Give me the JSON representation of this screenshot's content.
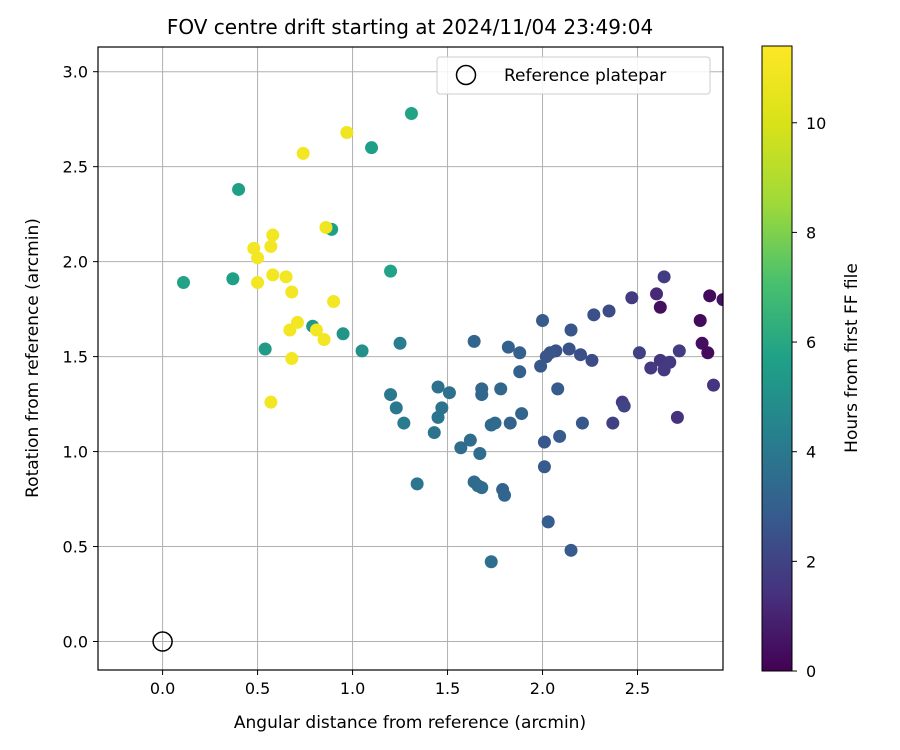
{
  "chart_data": {
    "type": "scatter",
    "title": "FOV centre drift starting at 2024/11/04 23:49:04",
    "xlabel": "Angular distance from reference (arcmin)",
    "ylabel": "Rotation from reference (arcmin)",
    "xlim": [
      -0.34,
      2.95
    ],
    "ylim": [
      -0.15,
      3.13
    ],
    "xticks": [
      "0.0",
      "0.5",
      "1.0",
      "1.5",
      "2.0",
      "2.5"
    ],
    "xtick_values": [
      0.0,
      0.5,
      1.0,
      1.5,
      2.0,
      2.5
    ],
    "yticks": [
      "0.0",
      "0.5",
      "1.0",
      "1.5",
      "2.0",
      "2.5",
      "3.0"
    ],
    "ytick_values": [
      0.0,
      0.5,
      1.0,
      1.5,
      2.0,
      2.5,
      3.0
    ],
    "grid": true,
    "legend": {
      "position": "top-right",
      "entries": [
        "Reference platepar"
      ]
    },
    "reference_point": {
      "name": "Reference platepar",
      "x": 0.0,
      "y": 0.0
    },
    "colorbar": {
      "label": "Hours from first FF file",
      "range": [
        0,
        11.4
      ],
      "ticks": [
        "0",
        "2",
        "4",
        "6",
        "8",
        "10"
      ],
      "tick_values": [
        0,
        2,
        4,
        6,
        8,
        10
      ],
      "colormap": "viridis"
    },
    "points": [
      {
        "x": 2.83,
        "y": 1.69,
        "h": 0.3
      },
      {
        "x": 2.88,
        "y": 1.82,
        "h": 0.3
      },
      {
        "x": 2.95,
        "y": 1.8,
        "h": 0.5
      },
      {
        "x": 2.84,
        "y": 1.57,
        "h": 0.4
      },
      {
        "x": 2.87,
        "y": 1.52,
        "h": 0.3
      },
      {
        "x": 2.62,
        "y": 1.76,
        "h": 0.4
      },
      {
        "x": 2.6,
        "y": 1.83,
        "h": 1.2
      },
      {
        "x": 2.9,
        "y": 1.35,
        "h": 1.5
      },
      {
        "x": 2.71,
        "y": 1.18,
        "h": 1.4
      },
      {
        "x": 2.64,
        "y": 1.92,
        "h": 1.8
      },
      {
        "x": 2.47,
        "y": 1.81,
        "h": 1.7
      },
      {
        "x": 2.72,
        "y": 1.53,
        "h": 1.8
      },
      {
        "x": 2.62,
        "y": 1.48,
        "h": 1.6
      },
      {
        "x": 2.67,
        "y": 1.47,
        "h": 1.7
      },
      {
        "x": 2.64,
        "y": 1.43,
        "h": 1.7
      },
      {
        "x": 2.51,
        "y": 1.52,
        "h": 1.9
      },
      {
        "x": 2.57,
        "y": 1.44,
        "h": 1.7
      },
      {
        "x": 2.42,
        "y": 1.26,
        "h": 1.8
      },
      {
        "x": 2.43,
        "y": 1.24,
        "h": 2.0
      },
      {
        "x": 2.37,
        "y": 1.15,
        "h": 1.9
      },
      {
        "x": 2.35,
        "y": 1.74,
        "h": 2.3
      },
      {
        "x": 2.27,
        "y": 1.72,
        "h": 2.4
      },
      {
        "x": 2.26,
        "y": 1.48,
        "h": 2.3
      },
      {
        "x": 2.2,
        "y": 1.51,
        "h": 2.4
      },
      {
        "x": 2.15,
        "y": 1.64,
        "h": 2.6
      },
      {
        "x": 2.14,
        "y": 1.54,
        "h": 2.5
      },
      {
        "x": 2.07,
        "y": 1.53,
        "h": 2.5
      },
      {
        "x": 2.04,
        "y": 1.52,
        "h": 2.6
      },
      {
        "x": 2.02,
        "y": 1.5,
        "h": 2.6
      },
      {
        "x": 2.0,
        "y": 1.69,
        "h": 2.8
      },
      {
        "x": 1.99,
        "y": 1.45,
        "h": 2.7
      },
      {
        "x": 2.21,
        "y": 1.15,
        "h": 2.7
      },
      {
        "x": 2.08,
        "y": 1.33,
        "h": 2.8
      },
      {
        "x": 2.09,
        "y": 1.08,
        "h": 2.8
      },
      {
        "x": 2.01,
        "y": 1.05,
        "h": 2.7
      },
      {
        "x": 2.01,
        "y": 0.92,
        "h": 2.8
      },
      {
        "x": 2.03,
        "y": 0.63,
        "h": 2.9
      },
      {
        "x": 2.15,
        "y": 0.48,
        "h": 2.8
      },
      {
        "x": 1.88,
        "y": 1.52,
        "h": 3.0
      },
      {
        "x": 1.82,
        "y": 1.55,
        "h": 3.0
      },
      {
        "x": 1.88,
        "y": 1.42,
        "h": 3.0
      },
      {
        "x": 1.89,
        "y": 1.2,
        "h": 3.2
      },
      {
        "x": 1.83,
        "y": 1.15,
        "h": 3.1
      },
      {
        "x": 1.79,
        "y": 0.8,
        "h": 3.1
      },
      {
        "x": 1.8,
        "y": 0.77,
        "h": 3.2
      },
      {
        "x": 1.78,
        "y": 1.33,
        "h": 3.3
      },
      {
        "x": 1.68,
        "y": 1.33,
        "h": 3.3
      },
      {
        "x": 1.68,
        "y": 1.3,
        "h": 3.3
      },
      {
        "x": 1.64,
        "y": 1.58,
        "h": 3.2
      },
      {
        "x": 1.75,
        "y": 1.15,
        "h": 3.4
      },
      {
        "x": 1.73,
        "y": 1.14,
        "h": 3.4
      },
      {
        "x": 1.62,
        "y": 1.06,
        "h": 3.5
      },
      {
        "x": 1.57,
        "y": 1.02,
        "h": 3.5
      },
      {
        "x": 1.67,
        "y": 0.99,
        "h": 3.5
      },
      {
        "x": 1.64,
        "y": 0.84,
        "h": 3.4
      },
      {
        "x": 1.66,
        "y": 0.82,
        "h": 3.4
      },
      {
        "x": 1.68,
        "y": 0.81,
        "h": 3.5
      },
      {
        "x": 1.73,
        "y": 0.42,
        "h": 3.6
      },
      {
        "x": 1.51,
        "y": 1.31,
        "h": 3.7
      },
      {
        "x": 1.45,
        "y": 1.34,
        "h": 3.7
      },
      {
        "x": 1.47,
        "y": 1.23,
        "h": 3.8
      },
      {
        "x": 1.45,
        "y": 1.18,
        "h": 3.8
      },
      {
        "x": 1.43,
        "y": 1.1,
        "h": 3.8
      },
      {
        "x": 1.34,
        "y": 0.83,
        "h": 3.9
      },
      {
        "x": 1.2,
        "y": 1.3,
        "h": 4.0
      },
      {
        "x": 1.23,
        "y": 1.23,
        "h": 4.0
      },
      {
        "x": 1.27,
        "y": 1.15,
        "h": 4.1
      },
      {
        "x": 1.25,
        "y": 1.57,
        "h": 4.2
      },
      {
        "x": 1.05,
        "y": 1.53,
        "h": 5.0
      },
      {
        "x": 0.95,
        "y": 1.62,
        "h": 5.2
      },
      {
        "x": 0.79,
        "y": 1.66,
        "h": 5.3
      },
      {
        "x": 0.54,
        "y": 1.54,
        "h": 5.4
      },
      {
        "x": 0.37,
        "y": 1.91,
        "h": 5.6
      },
      {
        "x": 0.11,
        "y": 1.89,
        "h": 5.8
      },
      {
        "x": 0.4,
        "y": 2.38,
        "h": 5.6
      },
      {
        "x": 0.89,
        "y": 2.17,
        "h": 5.6
      },
      {
        "x": 1.2,
        "y": 1.95,
        "h": 5.8
      },
      {
        "x": 1.1,
        "y": 2.6,
        "h": 5.6
      },
      {
        "x": 1.31,
        "y": 2.78,
        "h": 5.8
      },
      {
        "x": 0.97,
        "y": 2.68,
        "h": 10.9
      },
      {
        "x": 0.74,
        "y": 2.57,
        "h": 11.0
      },
      {
        "x": 0.86,
        "y": 2.18,
        "h": 10.9
      },
      {
        "x": 0.58,
        "y": 2.14,
        "h": 11.0
      },
      {
        "x": 0.48,
        "y": 2.07,
        "h": 11.0
      },
      {
        "x": 0.57,
        "y": 2.08,
        "h": 11.0
      },
      {
        "x": 0.5,
        "y": 2.02,
        "h": 11.0
      },
      {
        "x": 0.58,
        "y": 1.93,
        "h": 11.0
      },
      {
        "x": 0.65,
        "y": 1.92,
        "h": 11.0
      },
      {
        "x": 0.5,
        "y": 1.89,
        "h": 11.0
      },
      {
        "x": 0.68,
        "y": 1.84,
        "h": 11.0
      },
      {
        "x": 0.9,
        "y": 1.79,
        "h": 11.0
      },
      {
        "x": 0.71,
        "y": 1.68,
        "h": 11.0
      },
      {
        "x": 0.67,
        "y": 1.64,
        "h": 11.0
      },
      {
        "x": 0.81,
        "y": 1.64,
        "h": 11.0
      },
      {
        "x": 0.85,
        "y": 1.59,
        "h": 11.0
      },
      {
        "x": 0.68,
        "y": 1.49,
        "h": 11.0
      },
      {
        "x": 0.57,
        "y": 1.26,
        "h": 11.0
      }
    ]
  }
}
